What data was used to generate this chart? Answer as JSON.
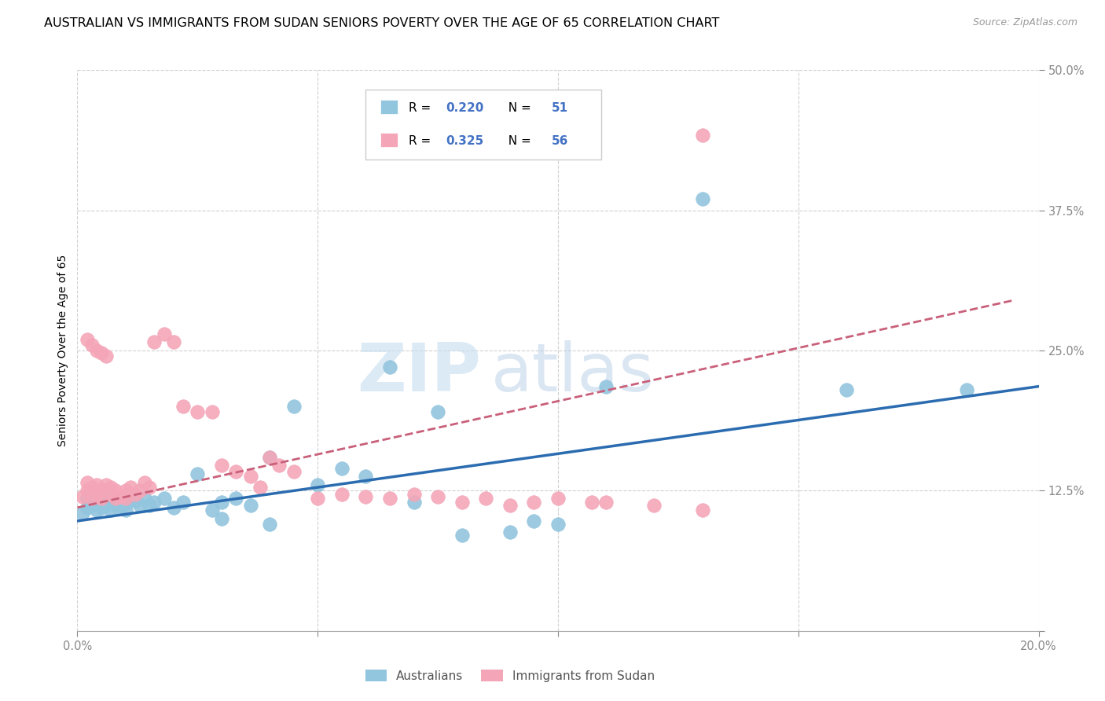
{
  "title": "AUSTRALIAN VS IMMIGRANTS FROM SUDAN SENIORS POVERTY OVER THE AGE OF 65 CORRELATION CHART",
  "source": "Source: ZipAtlas.com",
  "ylabel": "Seniors Poverty Over the Age of 65",
  "xlim": [
    0.0,
    0.2
  ],
  "ylim": [
    0.0,
    0.5
  ],
  "xticks": [
    0.0,
    0.05,
    0.1,
    0.15,
    0.2
  ],
  "yticks": [
    0.0,
    0.125,
    0.25,
    0.375,
    0.5
  ],
  "blue_color": "#92c5de",
  "pink_color": "#f4a6b8",
  "blue_line_color": "#2b6cb0",
  "pink_line_color": "#c9607a",
  "tick_color": "#4472c4",
  "grid_color": "#d0d0d0",
  "legend_label_blue": "Australians",
  "legend_label_pink": "Immigrants from Sudan",
  "watermark_zip": "ZIP",
  "watermark_atlas": "atlas",
  "title_fontsize": 11.5,
  "axis_label_fontsize": 10,
  "tick_fontsize": 10.5,
  "blue_dots_x": [
    0.001,
    0.002,
    0.002,
    0.003,
    0.003,
    0.004,
    0.004,
    0.005,
    0.005,
    0.006,
    0.006,
    0.007,
    0.007,
    0.008,
    0.008,
    0.009,
    0.009,
    0.01,
    0.01,
    0.011,
    0.012,
    0.013,
    0.014,
    0.015,
    0.016,
    0.018,
    0.02,
    0.022,
    0.025,
    0.028,
    0.03,
    0.033,
    0.036,
    0.04,
    0.045,
    0.05,
    0.055,
    0.06,
    0.065,
    0.075,
    0.08,
    0.09,
    0.095,
    0.1,
    0.11,
    0.13,
    0.16,
    0.185,
    0.03,
    0.04,
    0.07
  ],
  "blue_dots_y": [
    0.105,
    0.11,
    0.118,
    0.112,
    0.12,
    0.108,
    0.115,
    0.11,
    0.118,
    0.112,
    0.12,
    0.108,
    0.116,
    0.112,
    0.118,
    0.11,
    0.116,
    0.108,
    0.114,
    0.12,
    0.116,
    0.112,
    0.118,
    0.112,
    0.115,
    0.118,
    0.11,
    0.115,
    0.14,
    0.108,
    0.115,
    0.118,
    0.112,
    0.155,
    0.2,
    0.13,
    0.145,
    0.138,
    0.235,
    0.195,
    0.085,
    0.088,
    0.098,
    0.095,
    0.218,
    0.385,
    0.215,
    0.215,
    0.1,
    0.095,
    0.115
  ],
  "pink_dots_x": [
    0.001,
    0.002,
    0.002,
    0.003,
    0.003,
    0.004,
    0.004,
    0.005,
    0.005,
    0.006,
    0.007,
    0.007,
    0.008,
    0.008,
    0.009,
    0.01,
    0.01,
    0.011,
    0.012,
    0.013,
    0.014,
    0.015,
    0.016,
    0.018,
    0.02,
    0.022,
    0.025,
    0.028,
    0.03,
    0.033,
    0.036,
    0.038,
    0.04,
    0.042,
    0.045,
    0.05,
    0.055,
    0.06,
    0.065,
    0.07,
    0.075,
    0.08,
    0.085,
    0.09,
    0.095,
    0.1,
    0.11,
    0.12,
    0.13,
    0.13,
    0.002,
    0.003,
    0.004,
    0.005,
    0.006,
    0.107
  ],
  "pink_dots_y": [
    0.12,
    0.125,
    0.132,
    0.118,
    0.128,
    0.122,
    0.13,
    0.118,
    0.125,
    0.13,
    0.122,
    0.128,
    0.118,
    0.125,
    0.12,
    0.118,
    0.125,
    0.128,
    0.122,
    0.125,
    0.132,
    0.128,
    0.258,
    0.265,
    0.258,
    0.2,
    0.195,
    0.195,
    0.148,
    0.142,
    0.138,
    0.128,
    0.155,
    0.148,
    0.142,
    0.118,
    0.122,
    0.12,
    0.118,
    0.122,
    0.12,
    0.115,
    0.118,
    0.112,
    0.115,
    0.118,
    0.115,
    0.112,
    0.108,
    0.442,
    0.26,
    0.255,
    0.25,
    0.248,
    0.245,
    0.115
  ],
  "blue_trend_x": [
    0.0,
    0.2
  ],
  "blue_trend_y": [
    0.098,
    0.218
  ],
  "pink_trend_x": [
    0.0,
    0.195
  ],
  "pink_trend_y": [
    0.11,
    0.295
  ]
}
